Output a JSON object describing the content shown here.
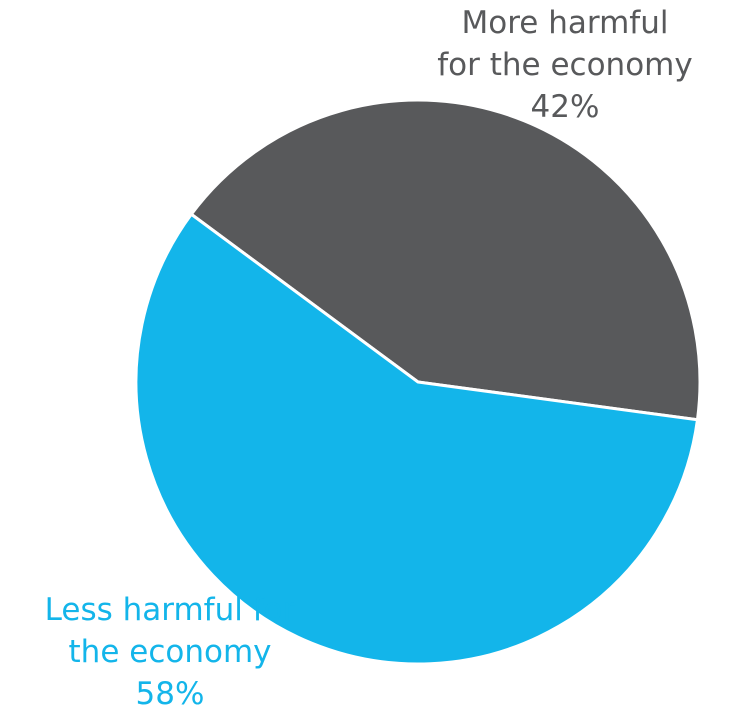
{
  "chart_data": {
    "type": "pie",
    "slices": [
      {
        "label_lines": [
          "More harmful",
          "for the economy"
        ],
        "value": 42,
        "value_label": "42%",
        "color": "#58595b"
      },
      {
        "label_lines": [
          "Less harmful for",
          "the economy"
        ],
        "value": 58,
        "value_label": "58%",
        "color": "#13b5ea"
      }
    ],
    "legend": "none"
  }
}
